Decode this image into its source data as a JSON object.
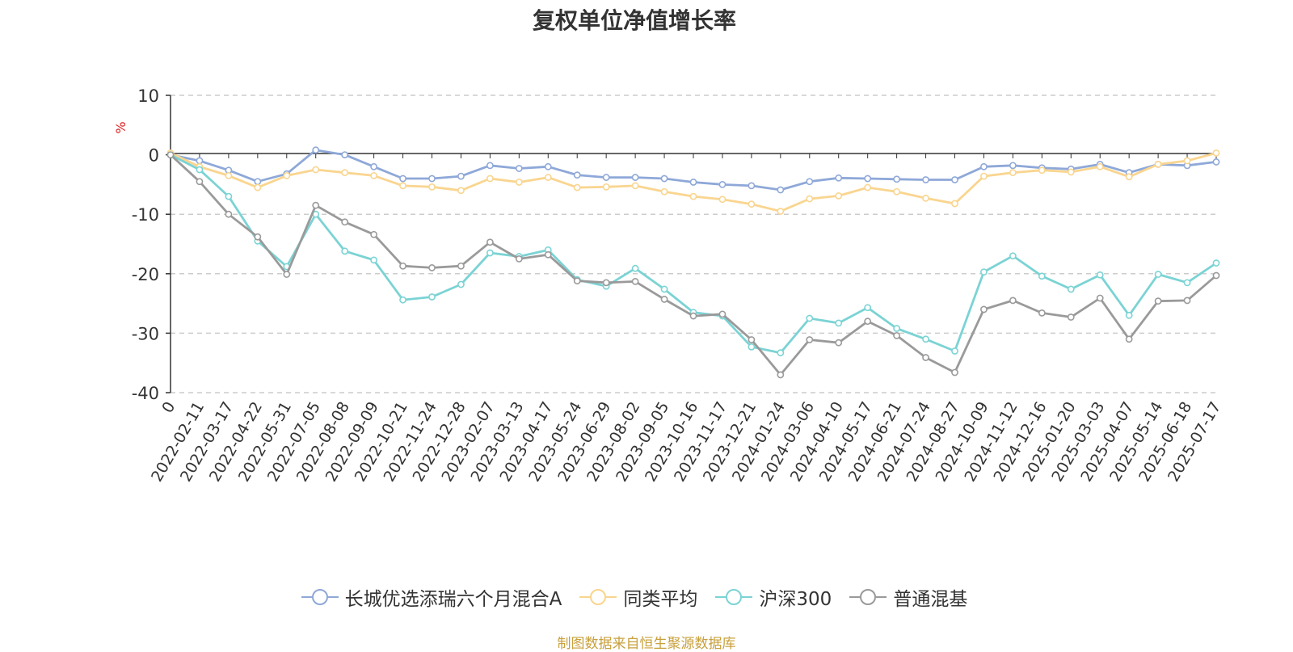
{
  "page": {
    "title": "复权单位净值增长率",
    "source_note": "制图数据来自恒生聚源数据库"
  },
  "chart_data": {
    "type": "line",
    "title": "复权单位净值增长率",
    "ylabel": "%",
    "ylim": [
      -40,
      10
    ],
    "yticks": [
      10,
      0,
      -10,
      -20,
      -30,
      -40
    ],
    "grid": true,
    "legend_position": "bottom",
    "x_tick_labels": [
      "0",
      "2022-02-11",
      "2022-03-17",
      "2022-04-22",
      "2022-05-31",
      "2022-07-05",
      "2022-08-08",
      "2022-09-09",
      "2022-10-21",
      "2022-11-24",
      "2022-12-28",
      "2023-02-07",
      "2023-03-13",
      "2023-04-17",
      "2023-05-24",
      "2023-06-29",
      "2023-08-02",
      "2023-09-05",
      "2023-10-16",
      "2023-11-17",
      "2023-12-21",
      "2024-01-24",
      "2024-03-06",
      "2024-04-10",
      "2024-05-17",
      "2024-06-21",
      "2024-07-24",
      "2024-08-27",
      "2024-10-09",
      "2024-11-12",
      "2024-12-16",
      "2025-01-20",
      "2025-03-03",
      "2025-04-07",
      "2025-05-14",
      "2025-06-18",
      "2025-07-17"
    ],
    "series": [
      {
        "name": "长城优选添瑞六个月混合A",
        "color": "#8ea8d8",
        "values": [
          0,
          -1,
          -2.6,
          -4.5,
          -3.2,
          0.8,
          0,
          -2,
          -4,
          -4,
          -3.6,
          -1.8,
          -2.3,
          -2,
          -3.4,
          -3.8,
          -3.8,
          -4,
          -4.6,
          -5,
          -5.2,
          -5.9,
          -4.5,
          -3.9,
          -4,
          -4.1,
          -4.2,
          -4.2,
          -2,
          -1.8,
          -2.2,
          -2.4,
          -1.6,
          -3,
          -1.6,
          -1.8,
          -1.2
        ]
      },
      {
        "name": "同类平均",
        "color": "#f9d58f",
        "values": [
          0.3,
          -2,
          -3.5,
          -5.5,
          -3.5,
          -2.5,
          -3,
          -3.5,
          -5.2,
          -5.4,
          -6,
          -4,
          -4.6,
          -3.8,
          -5.5,
          -5.4,
          -5.2,
          -6.2,
          -7,
          -7.5,
          -8.3,
          -9.5,
          -7.4,
          -6.9,
          -5.5,
          -6.2,
          -7.3,
          -8.2,
          -3.6,
          -3,
          -2.6,
          -2.9,
          -2,
          -3.7,
          -1.6,
          -1,
          0.3
        ]
      },
      {
        "name": "沪深300",
        "color": "#7bd3d4",
        "values": [
          0,
          -2.5,
          -7,
          -14.5,
          -18.8,
          -10,
          -16.2,
          -17.7,
          -24.4,
          -23.9,
          -21.8,
          -16.5,
          -17.1,
          -16,
          -21,
          -22.1,
          -19.1,
          -22.6,
          -26.5,
          -27.1,
          -32.3,
          -33.3,
          -27.5,
          -28.3,
          -25.7,
          -29.2,
          -31,
          -33,
          -19.7,
          -17,
          -20.4,
          -22.6,
          -20.2,
          -27,
          -20.1,
          -21.5,
          -18.2
        ]
      },
      {
        "name": "普通混基",
        "color": "#9a9a9a",
        "values": [
          0,
          -4.5,
          -10,
          -13.8,
          -20.1,
          -8.5,
          -11.3,
          -13.4,
          -18.7,
          -19,
          -18.7,
          -14.7,
          -17.5,
          -16.8,
          -21.2,
          -21.5,
          -21.3,
          -24.3,
          -27.1,
          -26.8,
          -31.1,
          -37,
          -31.1,
          -31.6,
          -28,
          -30.4,
          -34.1,
          -36.6,
          -26,
          -24.5,
          -26.6,
          -27.3,
          -24.1,
          -31,
          -24.6,
          -24.5,
          -20.3
        ]
      }
    ]
  }
}
